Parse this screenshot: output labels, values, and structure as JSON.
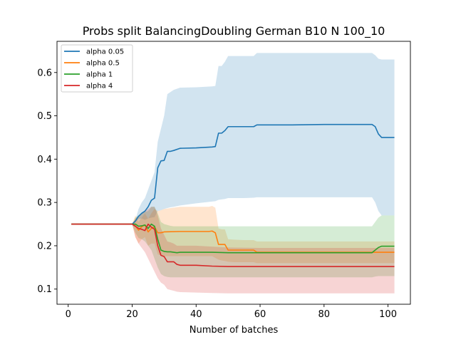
{
  "chart_data": {
    "type": "line",
    "title": "Probs split BalancingDoubling German B10 N 100_10",
    "xlabel": "Number of batches",
    "ylabel": "",
    "xlim": [
      -3.5,
      107
    ],
    "ylim": [
      0.065,
      0.672
    ],
    "xticks": [
      0,
      20,
      40,
      60,
      80,
      100
    ],
    "yticks": [
      0.1,
      0.2,
      0.3,
      0.4,
      0.5,
      0.6
    ],
    "ytick_labels": [
      "0.1",
      "0.2",
      "0.3",
      "0.4",
      "0.5",
      "0.6"
    ],
    "legend": {
      "location": "top-left"
    },
    "series": [
      {
        "name": "alpha 0.05",
        "color": "#1f77b4",
        "band_opacity": 0.2,
        "x": [
          1,
          20,
          21,
          22,
          23,
          24,
          25,
          26,
          27,
          28,
          29,
          30,
          31,
          32,
          33,
          35,
          40,
          45,
          46,
          47,
          48,
          49,
          50,
          55,
          58,
          59,
          70,
          80,
          95,
          96,
          97,
          98,
          100,
          102
        ],
        "mean": [
          0.25,
          0.25,
          0.257,
          0.268,
          0.275,
          0.28,
          0.29,
          0.305,
          0.31,
          0.38,
          0.396,
          0.397,
          0.418,
          0.418,
          0.42,
          0.425,
          0.426,
          0.428,
          0.429,
          0.46,
          0.46,
          0.466,
          0.475,
          0.475,
          0.475,
          0.479,
          0.479,
          0.48,
          0.48,
          0.475,
          0.458,
          0.45,
          0.45,
          0.45
        ],
        "lower": [
          0.25,
          0.25,
          0.254,
          0.262,
          0.263,
          0.26,
          0.263,
          0.265,
          0.266,
          0.28,
          0.282,
          0.285,
          0.287,
          0.289,
          0.29,
          0.293,
          0.298,
          0.302,
          0.303,
          0.306,
          0.307,
          0.308,
          0.31,
          0.31,
          0.311,
          0.312,
          0.312,
          0.312,
          0.312,
          0.3,
          0.28,
          0.27,
          0.27,
          0.27
        ],
        "upper": [
          0.25,
          0.25,
          0.26,
          0.285,
          0.3,
          0.31,
          0.33,
          0.35,
          0.37,
          0.44,
          0.47,
          0.5,
          0.55,
          0.555,
          0.56,
          0.565,
          0.566,
          0.568,
          0.569,
          0.615,
          0.615,
          0.625,
          0.638,
          0.638,
          0.638,
          0.645,
          0.645,
          0.645,
          0.645,
          0.64,
          0.632,
          0.63,
          0.63,
          0.63
        ]
      },
      {
        "name": "alpha 0.5",
        "color": "#ff7f0e",
        "band_opacity": 0.2,
        "x": [
          1,
          20,
          21,
          22,
          23,
          24,
          25,
          26,
          27,
          28,
          29,
          30,
          35,
          40,
          44,
          45,
          46,
          47,
          48,
          49,
          50,
          52,
          55,
          58,
          59,
          70,
          80,
          95,
          96,
          97,
          100,
          102
        ],
        "mean": [
          0.25,
          0.25,
          0.246,
          0.236,
          0.244,
          0.248,
          0.232,
          0.24,
          0.244,
          0.23,
          0.23,
          0.232,
          0.233,
          0.233,
          0.233,
          0.234,
          0.23,
          0.203,
          0.203,
          0.203,
          0.19,
          0.19,
          0.19,
          0.19,
          0.185,
          0.185,
          0.185,
          0.185,
          0.185,
          0.185,
          0.185,
          0.185
        ],
        "lower": [
          0.25,
          0.25,
          0.22,
          0.205,
          0.215,
          0.22,
          0.2,
          0.205,
          0.205,
          0.18,
          0.178,
          0.176,
          0.176,
          0.176,
          0.176,
          0.176,
          0.172,
          0.168,
          0.166,
          0.165,
          0.163,
          0.162,
          0.162,
          0.162,
          0.16,
          0.16,
          0.16,
          0.16,
          0.16,
          0.16,
          0.16,
          0.16
        ],
        "upper": [
          0.25,
          0.25,
          0.27,
          0.255,
          0.265,
          0.275,
          0.262,
          0.275,
          0.285,
          0.28,
          0.282,
          0.285,
          0.29,
          0.29,
          0.29,
          0.292,
          0.288,
          0.24,
          0.238,
          0.238,
          0.215,
          0.214,
          0.213,
          0.213,
          0.21,
          0.21,
          0.21,
          0.21,
          0.21,
          0.21,
          0.21,
          0.21
        ]
      },
      {
        "name": "alpha 1",
        "color": "#2ca02c",
        "band_opacity": 0.2,
        "x": [
          1,
          20,
          21,
          22,
          23,
          24,
          25,
          26,
          27,
          28,
          29,
          30,
          31,
          32,
          33,
          34,
          35,
          40,
          45,
          50,
          60,
          70,
          80,
          95,
          96,
          97,
          98,
          100,
          102
        ],
        "mean": [
          0.25,
          0.25,
          0.25,
          0.245,
          0.246,
          0.248,
          0.24,
          0.25,
          0.245,
          0.215,
          0.19,
          0.187,
          0.186,
          0.186,
          0.185,
          0.184,
          0.185,
          0.185,
          0.185,
          0.184,
          0.184,
          0.184,
          0.184,
          0.184,
          0.19,
          0.196,
          0.199,
          0.199,
          0.199
        ],
        "lower": [
          0.25,
          0.25,
          0.23,
          0.218,
          0.215,
          0.21,
          0.2,
          0.19,
          0.17,
          0.15,
          0.135,
          0.13,
          0.128,
          0.127,
          0.127,
          0.127,
          0.127,
          0.127,
          0.127,
          0.127,
          0.127,
          0.127,
          0.127,
          0.127,
          0.129,
          0.13,
          0.13,
          0.13,
          0.13
        ],
        "upper": [
          0.25,
          0.25,
          0.265,
          0.27,
          0.275,
          0.278,
          0.28,
          0.29,
          0.29,
          0.275,
          0.255,
          0.25,
          0.248,
          0.246,
          0.245,
          0.245,
          0.245,
          0.245,
          0.245,
          0.245,
          0.245,
          0.245,
          0.245,
          0.245,
          0.255,
          0.265,
          0.27,
          0.27,
          0.27
        ]
      },
      {
        "name": "alpha 4",
        "color": "#d62728",
        "band_opacity": 0.2,
        "x": [
          1,
          20,
          21,
          22,
          23,
          24,
          25,
          26,
          27,
          28,
          29,
          30,
          31,
          32,
          33,
          34,
          35,
          40,
          45,
          50,
          60,
          70,
          80,
          90,
          100,
          102
        ],
        "mean": [
          0.25,
          0.25,
          0.245,
          0.24,
          0.238,
          0.235,
          0.25,
          0.243,
          0.238,
          0.2,
          0.178,
          0.175,
          0.163,
          0.163,
          0.163,
          0.157,
          0.155,
          0.155,
          0.153,
          0.152,
          0.152,
          0.152,
          0.152,
          0.152,
          0.152,
          0.152
        ],
        "lower": [
          0.25,
          0.25,
          0.22,
          0.205,
          0.195,
          0.185,
          0.17,
          0.155,
          0.14,
          0.125,
          0.115,
          0.11,
          0.1,
          0.098,
          0.096,
          0.094,
          0.093,
          0.092,
          0.091,
          0.09,
          0.09,
          0.09,
          0.09,
          0.09,
          0.09,
          0.09
        ],
        "upper": [
          0.25,
          0.25,
          0.262,
          0.27,
          0.275,
          0.28,
          0.285,
          0.29,
          0.29,
          0.27,
          0.24,
          0.225,
          0.21,
          0.208,
          0.205,
          0.2,
          0.2,
          0.2,
          0.198,
          0.196,
          0.195,
          0.195,
          0.195,
          0.195,
          0.195,
          0.195
        ]
      }
    ]
  }
}
